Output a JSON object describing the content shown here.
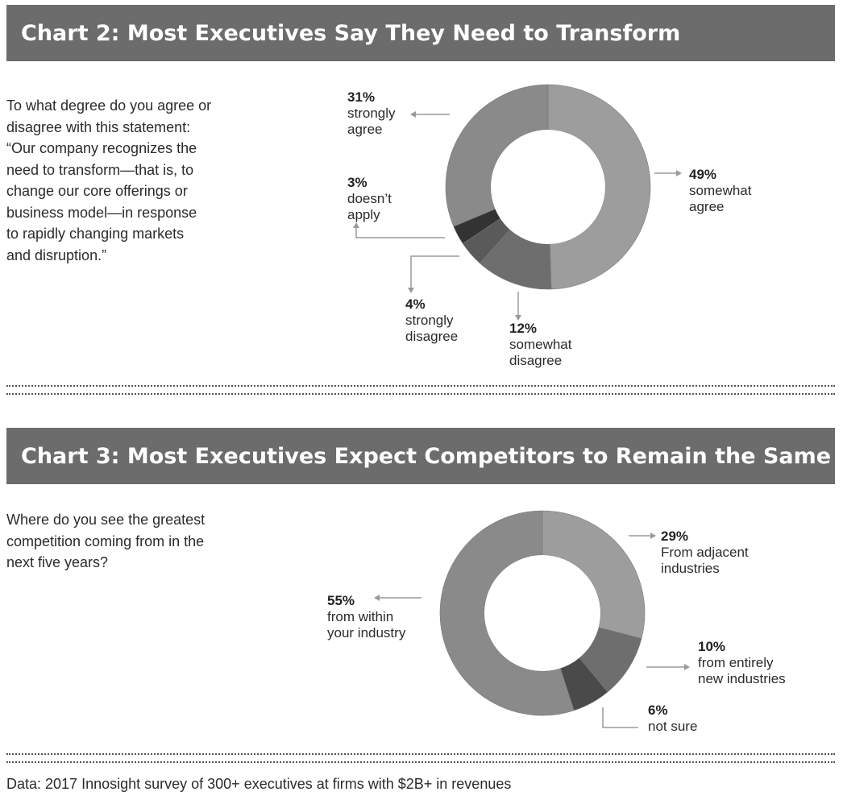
{
  "colors": {
    "title_bg": "#6c6c6c",
    "title_text": "#ffffff",
    "leader": "#9a9a9a"
  },
  "chart_data": [
    {
      "type": "pie",
      "variant": "donut",
      "title": "Chart 2: Most Executives Say They Need to Transform",
      "question": [
        "To what degree do you agree or",
        "disagree with this statement:",
        "“Our company recognizes the",
        "need to transform—that is, to",
        "change our core offerings or",
        "business model—in response",
        "to rapidly changing markets",
        "and disruption.”"
      ],
      "slices": [
        {
          "pct_label": "49%",
          "value": 49,
          "label": [
            "somewhat",
            "agree"
          ],
          "color": "#9d9d9d"
        },
        {
          "pct_label": "12%",
          "value": 12,
          "label": [
            "somewhat",
            "disagree"
          ],
          "color": "#6e6e6e"
        },
        {
          "pct_label": "4%",
          "value": 4,
          "label": [
            "strongly",
            "disagree"
          ],
          "color": "#5a5a5a"
        },
        {
          "pct_label": "3%",
          "value": 3,
          "label": [
            "doesn’t",
            "apply"
          ],
          "color": "#333333"
        },
        {
          "pct_label": "31%",
          "value": 31,
          "label": [
            "strongly",
            "agree"
          ],
          "color": "#8a8a8a"
        }
      ]
    },
    {
      "type": "pie",
      "variant": "donut",
      "title": "Chart 3: Most Executives Expect Competitors to Remain the Same",
      "question": [
        "Where do you see the greatest",
        "competition coming from in the",
        "next five years?"
      ],
      "slices": [
        {
          "pct_label": "29%",
          "value": 29,
          "label": [
            "From adjacent",
            "industries"
          ],
          "color": "#9d9d9d"
        },
        {
          "pct_label": "10%",
          "value": 10,
          "label": [
            "from entirely",
            "new industries"
          ],
          "color": "#6e6e6e"
        },
        {
          "pct_label": "6%",
          "value": 6,
          "label": [
            "not sure"
          ],
          "color": "#4a4a4a"
        },
        {
          "pct_label": "55%",
          "value": 55,
          "label": [
            "from within",
            "your industry"
          ],
          "color": "#8a8a8a"
        }
      ]
    }
  ],
  "footer": {
    "source": "Data: 2017 Innosight survey of 300+ executives at firms with $2B+ in revenues"
  }
}
